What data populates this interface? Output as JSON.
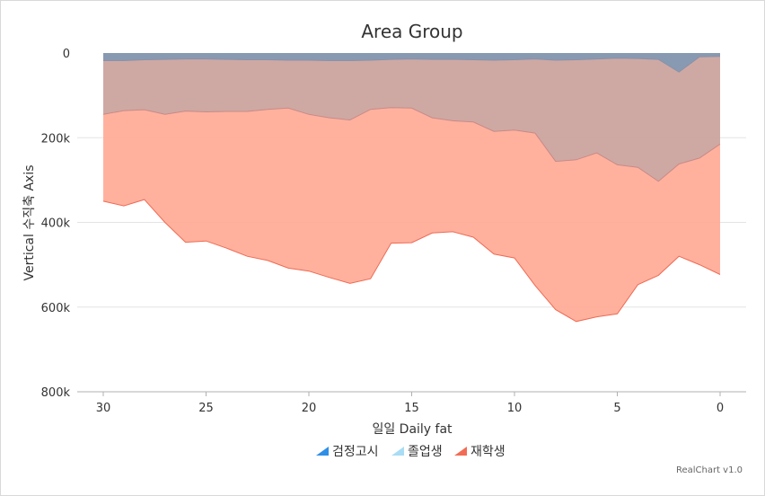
{
  "chart_data": {
    "type": "area",
    "stacked": true,
    "title": "Area Group",
    "xlabel": "일일 Daily fat",
    "ylabel": "Vertical 수직축 Axis",
    "xlim": [
      30,
      0
    ],
    "ylim": [
      0,
      800000
    ],
    "y_reversed": true,
    "x_ticks": [
      "30",
      "25",
      "20",
      "15",
      "10",
      "5",
      "0"
    ],
    "x_tick_values": [
      30,
      25,
      20,
      15,
      10,
      5,
      0
    ],
    "y_ticks": [
      "0",
      "200k",
      "400k",
      "600k",
      "800k"
    ],
    "y_tick_values": [
      0,
      200000,
      400000,
      600000,
      800000
    ],
    "grid": true,
    "legend_position": "bottom",
    "x": [
      30,
      29,
      28,
      27,
      26,
      25,
      24,
      23,
      22,
      21,
      20,
      19,
      18,
      17,
      16,
      15,
      14,
      13,
      12,
      11,
      10,
      9,
      8,
      7,
      6,
      5,
      4,
      3,
      2,
      1,
      0
    ],
    "series": [
      {
        "name": "검정고시",
        "color": "#7b8fa8",
        "values": [
          18000,
          18000,
          16000,
          15000,
          14000,
          14000,
          15000,
          16000,
          16000,
          17000,
          17000,
          18000,
          18000,
          17000,
          15000,
          14000,
          15000,
          15000,
          16000,
          17000,
          16000,
          14000,
          17000,
          16000,
          14000,
          12000,
          13000,
          15000,
          45000,
          9000,
          8000
        ]
      },
      {
        "name": "졸업생",
        "color": "#c9a09a",
        "values": [
          127000,
          118000,
          118000,
          130000,
          123000,
          125000,
          123000,
          122000,
          117000,
          113000,
          128000,
          135000,
          140000,
          116000,
          114000,
          116000,
          138000,
          145000,
          147000,
          168000,
          166000,
          175000,
          239000,
          236000,
          222000,
          252000,
          257000,
          288000,
          217000,
          239000,
          207000
        ]
      },
      {
        "name": "재학생",
        "color": "#ffa893",
        "values": [
          205000,
          225000,
          212000,
          255000,
          310000,
          305000,
          323000,
          342000,
          357000,
          378000,
          370000,
          377000,
          386000,
          400000,
          320000,
          318000,
          272000,
          262000,
          272000,
          290000,
          302000,
          360000,
          350000,
          382000,
          387000,
          352000,
          277000,
          222000,
          218000,
          252000,
          308000
        ]
      }
    ]
  },
  "footer": {
    "credit": "RealChart v1.0"
  }
}
